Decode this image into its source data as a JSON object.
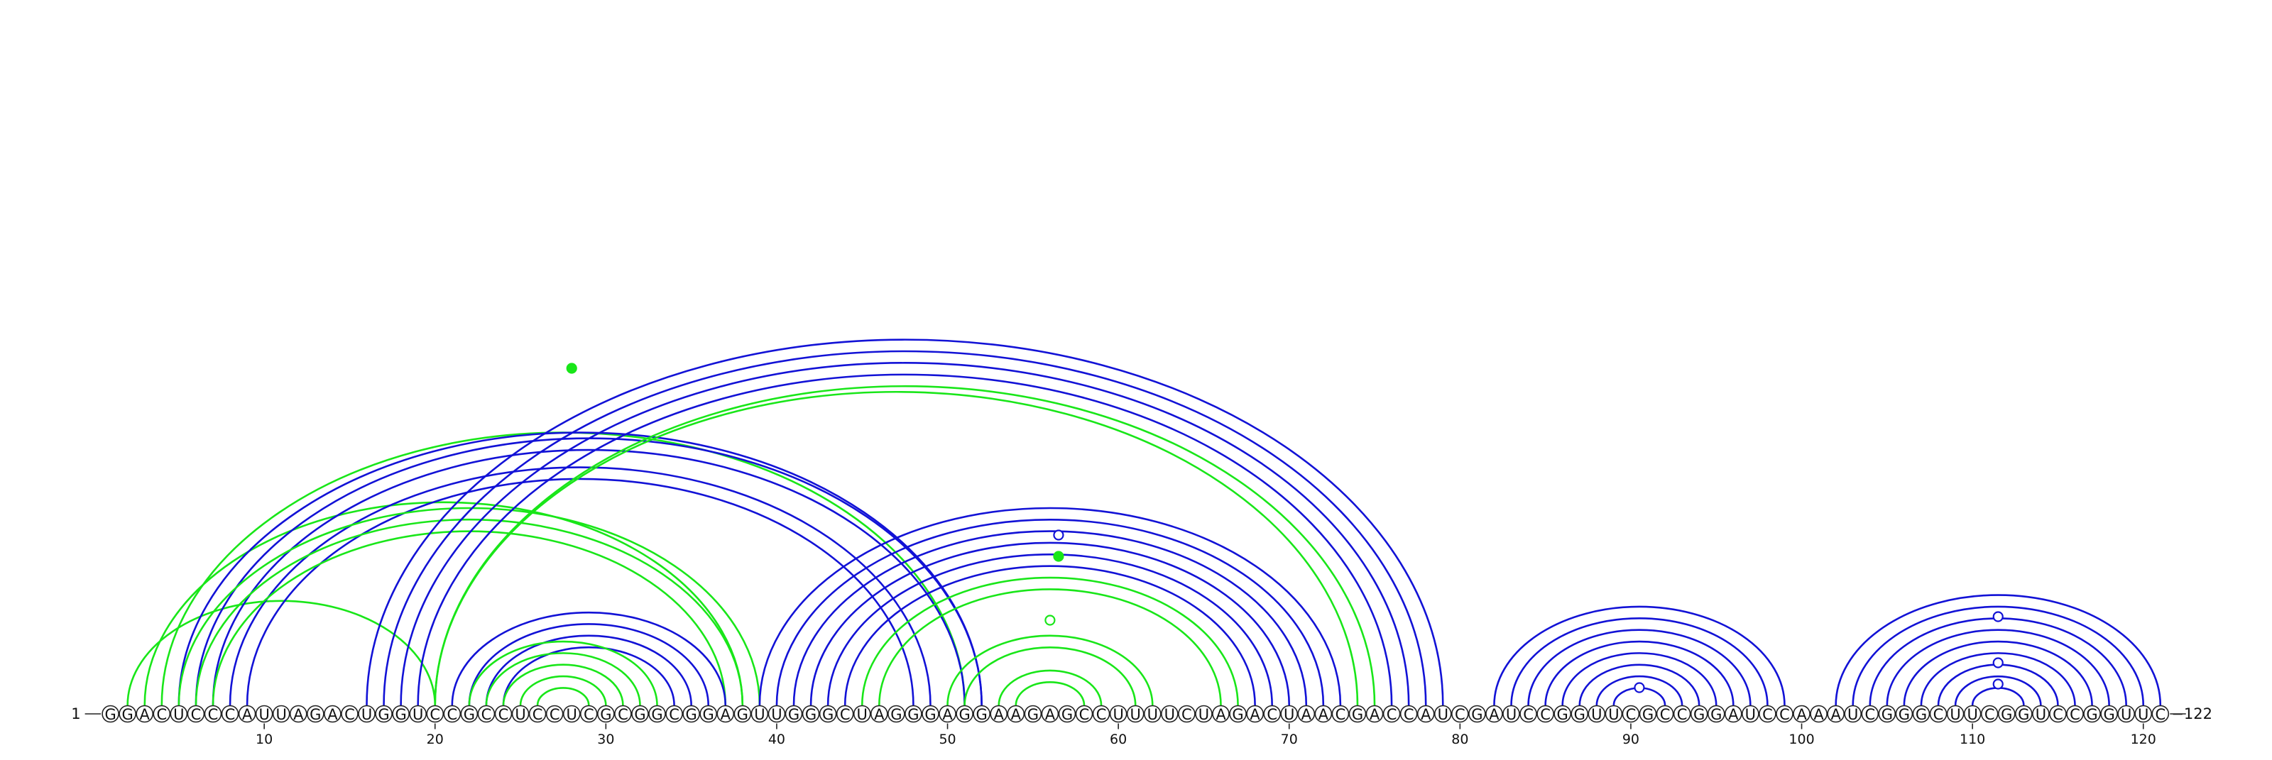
{
  "sequence": "GGACUCCCAUUAGACUGGUCCGCCUCCUCGCGGCGGAGUUGGGCUAGGGAGGAAGAGCCUUUUCUAGACUAACGACCAUCGAUCCGGUUCGCCGGAUCCAAAUCGGGCUUCGGUCCGGUUC",
  "start_label": "1",
  "end_label": "122",
  "tick_labels": [
    "10",
    "20",
    "30",
    "40",
    "50",
    "60",
    "70",
    "80",
    "90",
    "100",
    "110",
    "120"
  ],
  "colors": {
    "blue": "#1212d6",
    "green": "#19e619"
  },
  "arcs": [
    {
      "i": 2,
      "j": 20,
      "color": "green"
    },
    {
      "i": 3,
      "j": 38,
      "color": "green"
    },
    {
      "i": 4,
      "j": 51,
      "color": "green"
    },
    {
      "i": 5,
      "j": 52,
      "color": "blue"
    },
    {
      "i": 6,
      "j": 52,
      "color": "blue"
    },
    {
      "i": 7,
      "j": 51,
      "color": "blue"
    },
    {
      "i": 8,
      "j": 49,
      "color": "blue"
    },
    {
      "i": 9,
      "j": 48,
      "color": "blue"
    },
    {
      "i": 5,
      "j": 39,
      "color": "green"
    },
    {
      "i": 6,
      "j": 38,
      "color": "green"
    },
    {
      "i": 7,
      "j": 37,
      "color": "green"
    },
    {
      "i": 16,
      "j": 79,
      "color": "blue"
    },
    {
      "i": 17,
      "j": 78,
      "color": "blue"
    },
    {
      "i": 18,
      "j": 77,
      "color": "blue"
    },
    {
      "i": 19,
      "j": 76,
      "color": "blue"
    },
    {
      "i": 20,
      "j": 75,
      "color": "green"
    },
    {
      "i": 20,
      "j": 74,
      "color": "green"
    },
    {
      "i": 21,
      "j": 37,
      "color": "blue"
    },
    {
      "i": 22,
      "j": 36,
      "color": "blue"
    },
    {
      "i": 23,
      "j": 35,
      "color": "blue"
    },
    {
      "i": 24,
      "j": 34,
      "color": "blue"
    },
    {
      "i": 22,
      "j": 33,
      "color": "green"
    },
    {
      "i": 23,
      "j": 32,
      "color": "green"
    },
    {
      "i": 24,
      "j": 31,
      "color": "green"
    },
    {
      "i": 25,
      "j": 30,
      "color": "green"
    },
    {
      "i": 26,
      "j": 29,
      "color": "green"
    },
    {
      "i": 39,
      "j": 73,
      "color": "blue"
    },
    {
      "i": 40,
      "j": 72,
      "color": "blue"
    },
    {
      "i": 41,
      "j": 71,
      "color": "blue"
    },
    {
      "i": 42,
      "j": 70,
      "color": "blue"
    },
    {
      "i": 43,
      "j": 69,
      "color": "blue"
    },
    {
      "i": 44,
      "j": 68,
      "color": "blue"
    },
    {
      "i": 45,
      "j": 67,
      "color": "green"
    },
    {
      "i": 46,
      "j": 66,
      "color": "green"
    },
    {
      "i": 50,
      "j": 62,
      "color": "green"
    },
    {
      "i": 51,
      "j": 61,
      "color": "green"
    },
    {
      "i": 53,
      "j": 59,
      "color": "green"
    },
    {
      "i": 54,
      "j": 58,
      "color": "green"
    },
    {
      "i": 82,
      "j": 99,
      "color": "blue"
    },
    {
      "i": 83,
      "j": 98,
      "color": "blue"
    },
    {
      "i": 84,
      "j": 97,
      "color": "blue"
    },
    {
      "i": 85,
      "j": 96,
      "color": "blue"
    },
    {
      "i": 86,
      "j": 95,
      "color": "blue"
    },
    {
      "i": 87,
      "j": 94,
      "color": "blue"
    },
    {
      "i": 88,
      "j": 93,
      "color": "blue"
    },
    {
      "i": 89,
      "j": 92,
      "color": "blue"
    },
    {
      "i": 102,
      "j": 121,
      "color": "blue"
    },
    {
      "i": 103,
      "j": 120,
      "color": "blue"
    },
    {
      "i": 104,
      "j": 119,
      "color": "blue"
    },
    {
      "i": 105,
      "j": 118,
      "color": "blue"
    },
    {
      "i": 106,
      "j": 117,
      "color": "blue"
    },
    {
      "i": 107,
      "j": 116,
      "color": "blue"
    },
    {
      "i": 108,
      "j": 115,
      "color": "blue"
    },
    {
      "i": 109,
      "j": 114,
      "color": "blue"
    },
    {
      "i": 110,
      "j": 113,
      "color": "blue"
    }
  ],
  "markers": [
    {
      "pos": 28.0,
      "level": 0.95,
      "color": "green",
      "filled": true
    },
    {
      "pos": 56.5,
      "level": 0.48,
      "color": "blue",
      "filled": false
    },
    {
      "pos": 56.5,
      "level": 0.42,
      "color": "green",
      "filled": true
    },
    {
      "pos": 56.0,
      "level": 0.24,
      "color": "green",
      "filled": false
    },
    {
      "pos": 90.5,
      "level": 0.05,
      "color": "blue",
      "filled": false
    },
    {
      "pos": 111.5,
      "level": 0.25,
      "color": "blue",
      "filled": false
    },
    {
      "pos": 111.5,
      "level": 0.12,
      "color": "blue",
      "filled": false
    },
    {
      "pos": 111.5,
      "level": 0.06,
      "color": "blue",
      "filled": false
    }
  ]
}
